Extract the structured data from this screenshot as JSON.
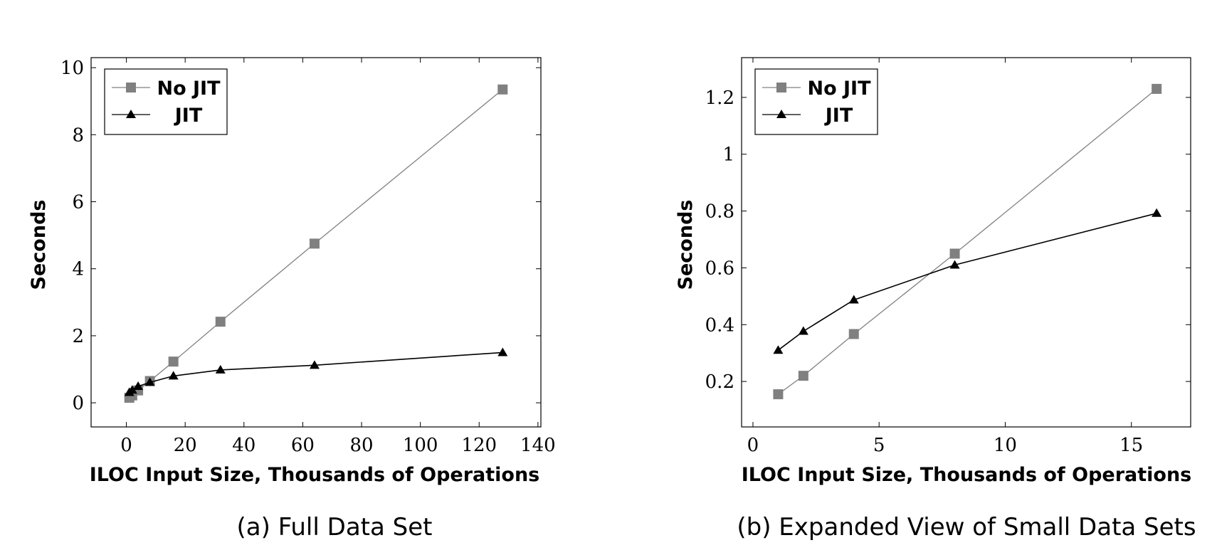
{
  "chart_data": [
    {
      "type": "line",
      "caption": "(a) Full Data Set",
      "xlabel": "ILOC Input Size, Thousands of Operations",
      "ylabel": "Seconds",
      "xlim": [
        -12,
        141
      ],
      "ylim": [
        -0.72,
        10.3
      ],
      "xticks": [
        0,
        20,
        40,
        60,
        80,
        100,
        120,
        140
      ],
      "yticks": [
        0,
        2,
        4,
        6,
        8,
        10
      ],
      "legend": "top-left",
      "series": [
        {
          "name": "No JIT",
          "marker": "square",
          "color": "#808080",
          "x": [
            1,
            2,
            4,
            8,
            16,
            32,
            64,
            128
          ],
          "y": [
            0.15,
            0.22,
            0.37,
            0.65,
            1.23,
            2.42,
            4.75,
            9.35
          ]
        },
        {
          "name": "JIT",
          "marker": "triangle",
          "color": "#000000",
          "x": [
            1,
            2,
            4,
            8,
            16,
            32,
            64,
            128
          ],
          "y": [
            0.31,
            0.38,
            0.49,
            0.61,
            0.8,
            0.98,
            1.12,
            1.5
          ]
        }
      ]
    },
    {
      "type": "line",
      "caption": "(b) Expanded View of Small Data Sets",
      "xlabel": "ILOC Input Size, Thousands of Operations",
      "ylabel": "Seconds",
      "xlim": [
        -0.45,
        17.35
      ],
      "ylim": [
        0.04,
        1.34
      ],
      "xticks": [
        0,
        5,
        10,
        15
      ],
      "yticks": [
        0.2,
        0.4,
        0.6,
        0.8,
        1,
        1.2
      ],
      "legend": "top-left",
      "series": [
        {
          "name": "No JIT",
          "marker": "square",
          "color": "#808080",
          "x": [
            1,
            2,
            4,
            8,
            16
          ],
          "y": [
            0.155,
            0.22,
            0.367,
            0.65,
            1.23
          ]
        },
        {
          "name": "JIT",
          "marker": "triangle",
          "color": "#000000",
          "x": [
            1,
            2,
            4,
            8,
            16
          ],
          "y": [
            0.31,
            0.377,
            0.487,
            0.61,
            0.792
          ]
        }
      ]
    }
  ]
}
